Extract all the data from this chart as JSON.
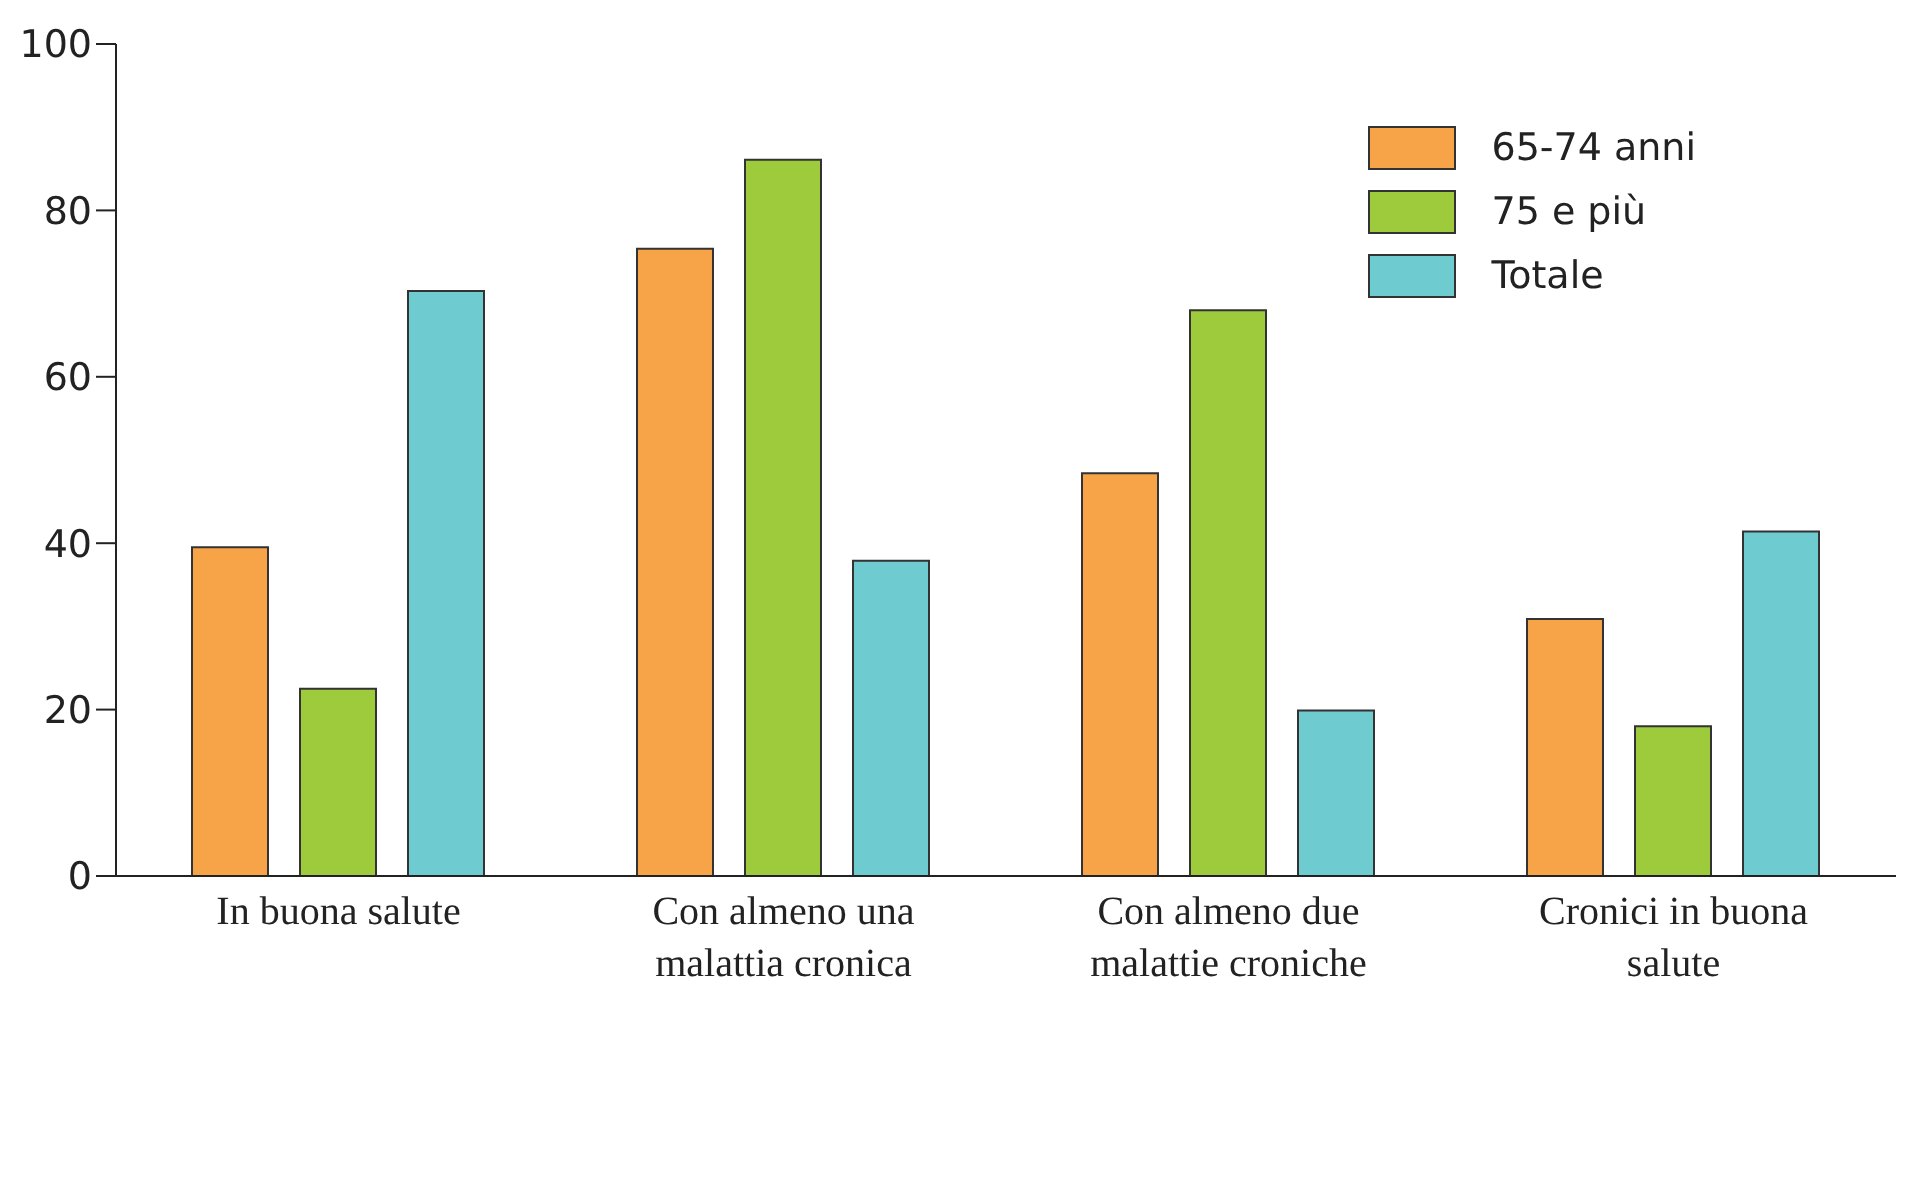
{
  "chart_data": {
    "type": "bar",
    "categories": [
      "In buona salute",
      "Con almeno una malattia cronica",
      "Con almeno due malattie croniche",
      "Cronici in buona salute"
    ],
    "series": [
      {
        "name": "65-74 anni",
        "color": "#f7a449",
        "values": [
          39.5,
          75.4,
          48.4,
          30.9
        ]
      },
      {
        "name": "75 e più",
        "color": "#9dcb3c",
        "values": [
          22.5,
          86.1,
          68.0,
          18.0
        ]
      },
      {
        "name": "Totale",
        "color": "#6ecbcf",
        "values": [
          70.3,
          37.9,
          19.9,
          41.4
        ]
      }
    ],
    "ylim": [
      0,
      100
    ],
    "yticks": [
      0,
      20,
      40,
      60,
      80,
      100
    ],
    "grid": false,
    "legend": "top right"
  }
}
